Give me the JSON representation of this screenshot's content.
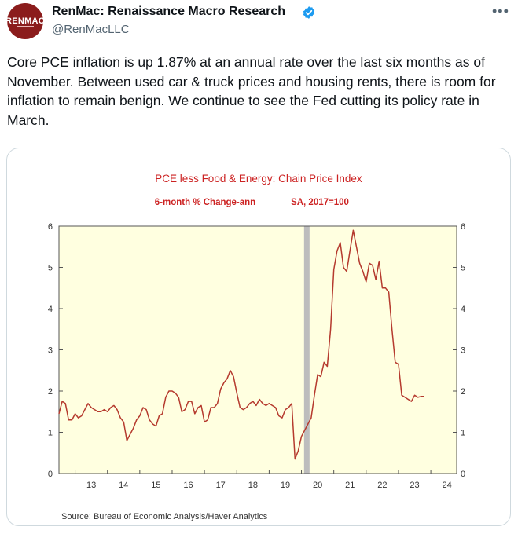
{
  "tweet": {
    "author_name": "RenMac: Renaissance Macro Research",
    "handle": "@RenMacLLC",
    "avatar_text": "RENMAC",
    "text": "Core PCE inflation is up 1.87% at an annual rate over the last six months as of November. Between used car & truck prices and housing rents, there is room for inflation to remain benign. We continue to see the Fed cutting its policy rate in March.",
    "more_icon": "ellipsis-icon",
    "verified_icon": "verified-badge-icon"
  },
  "colors": {
    "avatar_bg": "#8b1c1c",
    "verified": "#1d9bf0",
    "chart_title": "#cc2222",
    "plot_bg": "#ffffe0",
    "line": "#b53a2e",
    "recession_band": "#bdbdbd"
  },
  "chart_data": {
    "type": "line",
    "title": "PCE less Food & Energy: Chain Price Index",
    "subtitle_left": "6-month % Change-ann",
    "subtitle_right": "SA, 2017=100",
    "source": "Source:  Bureau of Economic Analysis/Haver Analytics",
    "xlabel": "",
    "ylabel": "",
    "ylim": [
      0,
      6
    ],
    "xlim": [
      2012.5,
      2024.8
    ],
    "y_ticks": [
      0,
      1,
      2,
      3,
      4,
      5,
      6
    ],
    "x_ticks": [
      "13",
      "14",
      "15",
      "16",
      "17",
      "18",
      "19",
      "20",
      "21",
      "22",
      "23",
      "24"
    ],
    "x_tick_years": [
      2013,
      2014,
      2015,
      2016,
      2017,
      2018,
      2019,
      2020,
      2021,
      2022,
      2023,
      2024
    ],
    "recession_band": [
      2020.08,
      2020.25
    ],
    "grid": false,
    "series": [
      {
        "x": [
          2012.5,
          2012.6,
          2012.7,
          2012.8,
          2012.9,
          2013.0,
          2013.1,
          2013.2,
          2013.3,
          2013.4,
          2013.5,
          2013.6,
          2013.7,
          2013.8,
          2013.9,
          2014.0,
          2014.1,
          2014.2,
          2014.3,
          2014.4,
          2014.5,
          2014.6,
          2014.7,
          2014.8,
          2014.9,
          2015.0,
          2015.1,
          2015.2,
          2015.3,
          2015.4,
          2015.5,
          2015.6,
          2015.7,
          2015.8,
          2015.9,
          2016.0,
          2016.1,
          2016.2,
          2016.3,
          2016.4,
          2016.5,
          2016.6,
          2016.7,
          2016.8,
          2016.9,
          2017.0,
          2017.1,
          2017.2,
          2017.3,
          2017.4,
          2017.5,
          2017.6,
          2017.7,
          2017.8,
          2017.9,
          2018.0,
          2018.1,
          2018.2,
          2018.3,
          2018.4,
          2018.5,
          2018.6,
          2018.7,
          2018.8,
          2018.9,
          2019.0,
          2019.1,
          2019.2,
          2019.3,
          2019.4,
          2019.5,
          2019.6,
          2019.7,
          2019.8,
          2019.9,
          2020.0,
          2020.3,
          2020.4,
          2020.5,
          2020.6,
          2020.7,
          2020.8,
          2020.9,
          2021.0,
          2021.1,
          2021.2,
          2021.3,
          2021.4,
          2021.5,
          2021.6,
          2021.7,
          2021.8,
          2021.9,
          2022.0,
          2022.1,
          2022.2,
          2022.3,
          2022.4,
          2022.5,
          2022.6,
          2022.7,
          2022.8,
          2022.9,
          2023.0,
          2023.1,
          2023.2,
          2023.3,
          2023.4,
          2023.5,
          2023.6,
          2023.7,
          2023.8
        ],
        "values": [
          1.45,
          1.75,
          1.7,
          1.3,
          1.3,
          1.45,
          1.35,
          1.4,
          1.55,
          1.7,
          1.6,
          1.55,
          1.5,
          1.5,
          1.55,
          1.5,
          1.6,
          1.65,
          1.55,
          1.35,
          1.25,
          0.8,
          0.95,
          1.1,
          1.3,
          1.4,
          1.6,
          1.55,
          1.3,
          1.2,
          1.15,
          1.4,
          1.45,
          1.85,
          2.0,
          2.0,
          1.95,
          1.85,
          1.5,
          1.55,
          1.75,
          1.75,
          1.45,
          1.6,
          1.65,
          1.25,
          1.3,
          1.6,
          1.6,
          1.7,
          2.05,
          2.2,
          2.3,
          2.5,
          2.35,
          1.95,
          1.6,
          1.55,
          1.6,
          1.7,
          1.75,
          1.65,
          1.8,
          1.7,
          1.65,
          1.7,
          1.65,
          1.6,
          1.4,
          1.35,
          1.55,
          1.6,
          1.7,
          0.35,
          0.55,
          0.9,
          1.35,
          1.9,
          2.4,
          2.35,
          2.7,
          2.6,
          3.5,
          4.95,
          5.4,
          5.6,
          5.0,
          4.9,
          5.4,
          5.9,
          5.5,
          5.1,
          4.9,
          4.65,
          5.1,
          5.05,
          4.7,
          5.15,
          4.5,
          4.5,
          4.4,
          3.5,
          2.7,
          2.65,
          1.9,
          1.85,
          1.8,
          1.75,
          1.9,
          1.85,
          1.87,
          1.87
        ]
      }
    ]
  }
}
